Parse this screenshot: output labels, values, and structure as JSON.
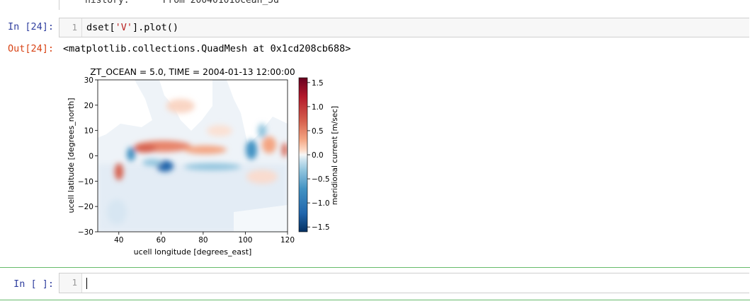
{
  "top_cell": {
    "partial_text": "history:      From 20040101ocean_5d"
  },
  "cell_24": {
    "in_prompt": "In [24]:",
    "line_number": "1",
    "code_prefix": "dset[",
    "code_string": "'V'",
    "code_suffix": "].plot()",
    "out_prompt": "Out[24]:",
    "output_text": "<matplotlib.collections.QuadMesh at 0x1cd208cb688>"
  },
  "colors": {
    "in_prompt": "#303f9f",
    "out_prompt": "#d84315",
    "active_cell_border": "#66bb6a",
    "colormap": "RdBu_r"
  },
  "chart_data": {
    "type": "heatmap",
    "title": "ZT_OCEAN = 5.0, TIME = 2004-01-13 12:00:00",
    "xlabel": "ucell longitude [degrees_east]",
    "ylabel": "ucell latitude [degrees_north]",
    "xlim": [
      30,
      120
    ],
    "ylim": [
      -30,
      30
    ],
    "x_ticks": [
      "40",
      "60",
      "80",
      "100",
      "120"
    ],
    "y_ticks": [
      "30",
      "20",
      "10",
      "0",
      "−10",
      "−20",
      "−30"
    ],
    "colorbar_label": "meridional current [m/sec]",
    "colorbar_range": [
      -1.6,
      1.6
    ],
    "colorbar_ticks": [
      "1.5",
      "1.0",
      "0.5",
      "0.0",
      "−0.5",
      "−1.0",
      "−1.5"
    ],
    "features": [
      {
        "lon": 56,
        "lat": 4,
        "value": 0.6
      },
      {
        "lon": 63,
        "lat": -4,
        "value": -1.3
      },
      {
        "lon": 40,
        "lat": -6,
        "value": 0.9
      },
      {
        "lon": 48,
        "lat": 0,
        "value": -0.6
      },
      {
        "lon": 95,
        "lat": 3,
        "value": -0.4
      },
      {
        "lon": 108,
        "lat": 1,
        "value": -0.7
      },
      {
        "lon": 112,
        "lat": 5,
        "value": 0.5
      },
      {
        "lon": 72,
        "lat": 3,
        "value": 0.5
      }
    ]
  },
  "new_cell": {
    "in_prompt": "In [ ]:",
    "line_number": "1"
  }
}
